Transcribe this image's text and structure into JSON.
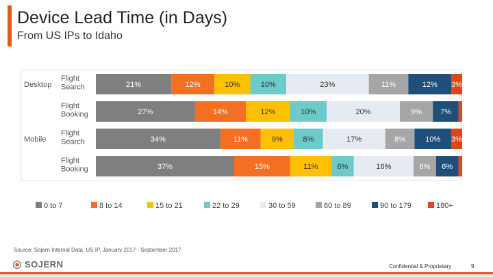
{
  "slide": {
    "title": "Device Lead Time (in Days)",
    "subtitle": "From US IPs to Idaho",
    "source": "Source: Sojern Internal Data, US IP, January 2017 - September 2017",
    "logo_text": "SOJERN",
    "confidential": "Confidential & Proprietary",
    "page_number": "9",
    "accent_color": "#e8561c"
  },
  "chart_data": {
    "type": "bar",
    "orientation": "horizontal",
    "stacked": "100%",
    "title": "",
    "xlabel": "",
    "ylabel": "",
    "groups": [
      {
        "label": "Desktop",
        "rows": [
          0,
          1
        ]
      },
      {
        "label": "Mobile",
        "rows": [
          2,
          3
        ]
      }
    ],
    "categories": [
      "Flight\nSearch",
      "Flight\nBooking",
      "Flight\nSearch",
      "Flight\nBooking"
    ],
    "series": [
      {
        "name": "0 to 7",
        "color": "#7f7f7f",
        "values": [
          21,
          27,
          34,
          37
        ]
      },
      {
        "name": "8 to 14",
        "color": "#f36f21",
        "values": [
          12,
          14,
          11,
          15
        ]
      },
      {
        "name": "15 to 21",
        "color": "#ffc000",
        "values": [
          10,
          12,
          9,
          11
        ]
      },
      {
        "name": "22 to 29",
        "color": "#6ccac9",
        "values": [
          10,
          10,
          8,
          6
        ]
      },
      {
        "name": "30 to 59",
        "color": "#e6ebf1",
        "values": [
          23,
          20,
          17,
          16
        ]
      },
      {
        "name": "60 to 89",
        "color": "#a6a6a6",
        "values": [
          11,
          9,
          8,
          6
        ]
      },
      {
        "name": "90 to 179",
        "color": "#1f4e79",
        "values": [
          12,
          7,
          10,
          6
        ]
      },
      {
        "name": "180+",
        "color": "#e0441a",
        "values": [
          3,
          1,
          3,
          1
        ]
      }
    ],
    "value_labels": [
      [
        "21%",
        "12%",
        "10%",
        "10%",
        "23%",
        "11%",
        "12%",
        "3%"
      ],
      [
        "27%",
        "14%",
        "12%",
        "10%",
        "20%",
        "9%",
        "7%",
        ""
      ],
      [
        "34%",
        "11%",
        "9%",
        "8%",
        "17%",
        "8%",
        "10%",
        "3%"
      ],
      [
        "37%",
        "15%",
        "11%",
        "6%",
        "16%",
        "6%",
        "6%",
        ""
      ]
    ],
    "legend_position": "bottom",
    "grid": false
  }
}
